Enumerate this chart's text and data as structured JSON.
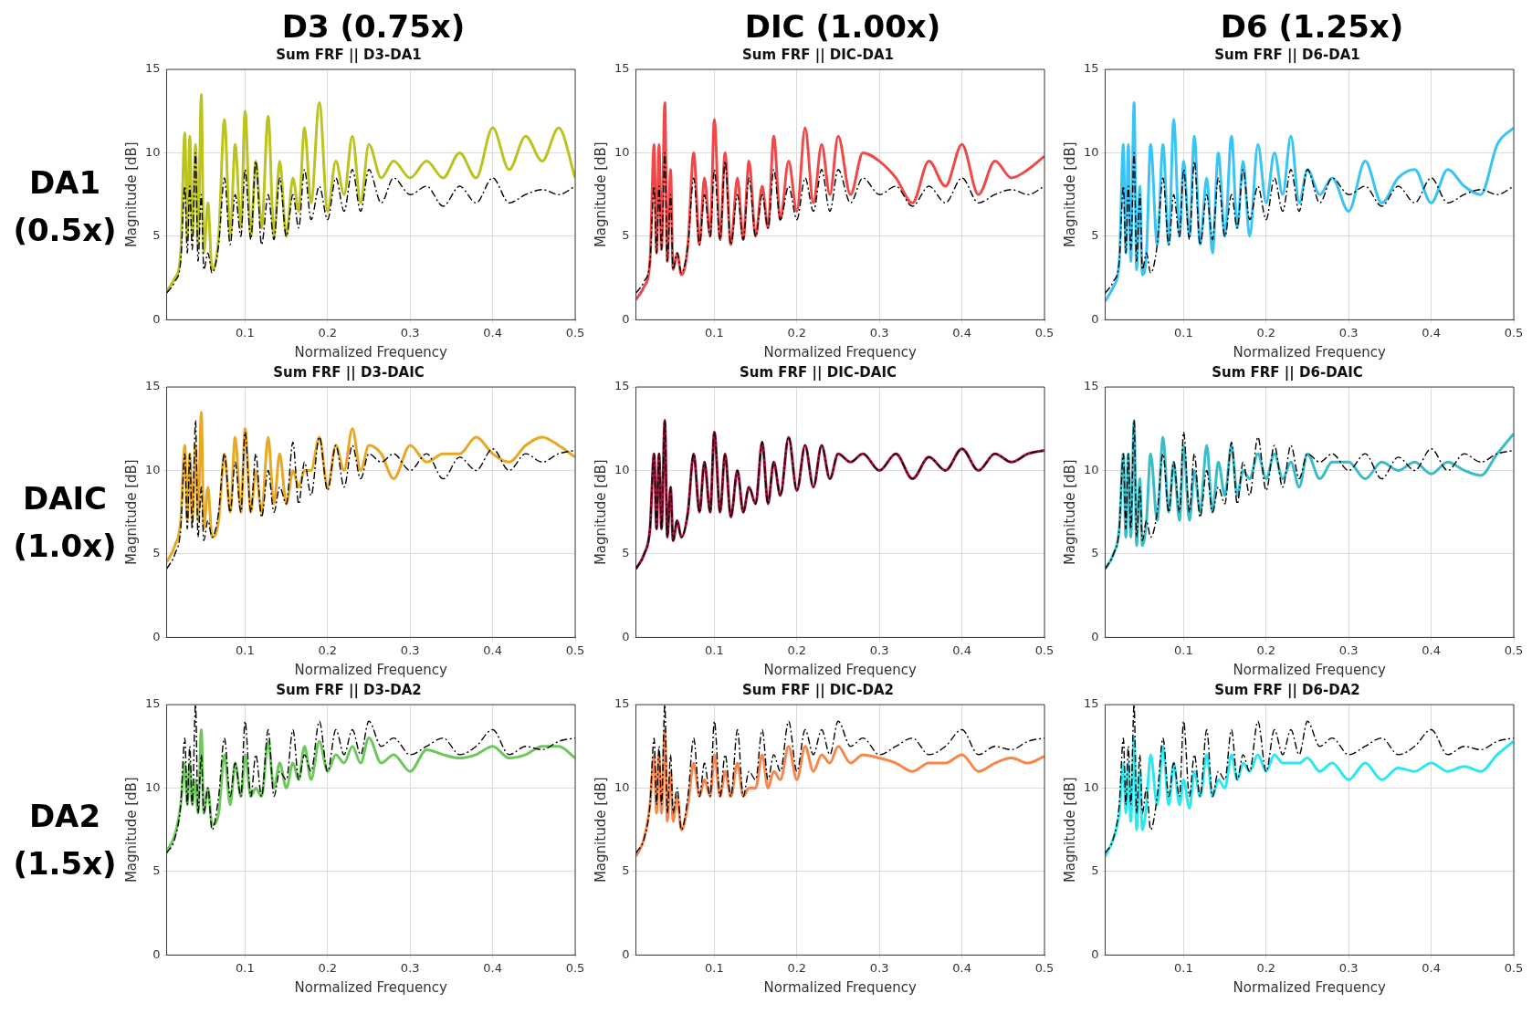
{
  "chart_data": [
    {
      "type": "line",
      "title": "Sum FRF || D3-DA1",
      "xlabel": "Normalized Frequency",
      "ylabel": "Magnitude [dB]",
      "annotations": [
        "D3 (0.75x)",
        "DA1 (0.5x)"
      ],
      "xlim": [
        0.005,
        0.5
      ],
      "xticks": [
        0.1,
        0.2,
        0.3,
        0.4,
        0.5
      ],
      "ylim": [
        0,
        15
      ],
      "yticks": [
        0,
        5,
        10,
        15
      ],
      "grid": true,
      "legend": false,
      "x": [
        0.005,
        0.015,
        0.022,
        0.027,
        0.03,
        0.033,
        0.036,
        0.04,
        0.043,
        0.047,
        0.05,
        0.055,
        0.06,
        0.068,
        0.075,
        0.082,
        0.088,
        0.095,
        0.1,
        0.107,
        0.113,
        0.12,
        0.128,
        0.135,
        0.142,
        0.15,
        0.158,
        0.165,
        0.172,
        0.18,
        0.19,
        0.2,
        0.21,
        0.22,
        0.23,
        0.24,
        0.25,
        0.265,
        0.28,
        0.3,
        0.32,
        0.34,
        0.36,
        0.38,
        0.4,
        0.42,
        0.44,
        0.46,
        0.48,
        0.5
      ],
      "series": [
        {
          "color": "#bcc21e",
          "line_style": "solid",
          "values": [
            1.7,
            2.5,
            4.0,
            11.2,
            5.0,
            11.0,
            5.0,
            10.5,
            4.5,
            13.5,
            4.0,
            7.0,
            3.0,
            5.0,
            12.0,
            5.0,
            10.5,
            5.5,
            12.5,
            5.0,
            9.5,
            5.5,
            12.2,
            5.0,
            9.5,
            5.0,
            8.5,
            6.5,
            11.5,
            7.0,
            13.0,
            6.5,
            9.5,
            7.5,
            11.0,
            7.0,
            10.5,
            8.5,
            9.5,
            8.5,
            9.5,
            8.5,
            10.0,
            8.5,
            11.5,
            9.0,
            11.0,
            9.5,
            11.5,
            8.5
          ]
        },
        {
          "color": "#000000",
          "line_style": "dashed",
          "values": [
            1.6,
            2.3,
            3.5,
            8.0,
            4.0,
            8.0,
            4.2,
            10.0,
            3.5,
            7.5,
            3.0,
            4.0,
            2.8,
            4.5,
            8.5,
            4.5,
            7.5,
            5.0,
            9.0,
            4.8,
            9.5,
            4.5,
            7.5,
            4.8,
            8.5,
            5.0,
            7.5,
            5.5,
            9.0,
            6.0,
            8.0,
            6.0,
            8.5,
            6.5,
            9.0,
            6.5,
            9.0,
            7.0,
            8.5,
            7.5,
            8.0,
            6.8,
            8.0,
            7.0,
            8.5,
            7.0,
            7.5,
            7.8,
            7.5,
            8.0
          ]
        }
      ]
    },
    {
      "type": "line",
      "title": "Sum FRF || DIC-DA1",
      "xlabel": "Normalized Frequency",
      "ylabel": "Magnitude [dB]",
      "annotations": [
        "DIC (1.00x)"
      ],
      "xlim": [
        0.005,
        0.5
      ],
      "xticks": [
        0.1,
        0.2,
        0.3,
        0.4,
        0.5
      ],
      "ylim": [
        0,
        15
      ],
      "yticks": [
        0,
        5,
        10,
        15
      ],
      "grid": true,
      "legend": false,
      "x": [
        0.005,
        0.015,
        0.022,
        0.027,
        0.03,
        0.033,
        0.036,
        0.04,
        0.043,
        0.047,
        0.05,
        0.055,
        0.06,
        0.068,
        0.075,
        0.082,
        0.088,
        0.095,
        0.1,
        0.107,
        0.113,
        0.12,
        0.128,
        0.135,
        0.142,
        0.15,
        0.158,
        0.165,
        0.172,
        0.18,
        0.19,
        0.2,
        0.21,
        0.22,
        0.23,
        0.24,
        0.25,
        0.265,
        0.28,
        0.3,
        0.32,
        0.34,
        0.36,
        0.38,
        0.4,
        0.42,
        0.44,
        0.46,
        0.48,
        0.5
      ],
      "series": [
        {
          "color": "#f04848",
          "line_style": "solid",
          "values": [
            1.2,
            2.0,
            3.5,
            10.5,
            4.0,
            10.5,
            4.2,
            13.0,
            3.5,
            9.0,
            3.0,
            4.0,
            2.7,
            4.5,
            10.0,
            4.5,
            8.5,
            5.0,
            12.0,
            4.8,
            10.0,
            4.5,
            8.5,
            4.8,
            9.5,
            5.0,
            8.0,
            5.5,
            11.0,
            6.0,
            9.5,
            6.5,
            11.5,
            7.0,
            10.5,
            7.5,
            11.0,
            7.5,
            10.0,
            9.5,
            8.5,
            7.0,
            9.5,
            8.0,
            10.5,
            7.5,
            9.5,
            8.5,
            9.0,
            9.8
          ]
        },
        {
          "color": "#000000",
          "line_style": "dashed",
          "values": [
            1.6,
            2.3,
            3.5,
            8.0,
            4.0,
            8.0,
            4.2,
            10.0,
            3.5,
            7.5,
            3.0,
            4.0,
            2.8,
            4.5,
            8.5,
            4.5,
            7.5,
            5.0,
            9.0,
            4.8,
            9.5,
            4.5,
            7.5,
            4.8,
            8.5,
            5.0,
            7.5,
            5.5,
            9.0,
            6.0,
            8.0,
            6.0,
            8.5,
            6.5,
            9.0,
            6.5,
            9.0,
            7.0,
            8.5,
            7.5,
            8.0,
            6.8,
            8.0,
            7.0,
            8.5,
            7.0,
            7.5,
            7.8,
            7.5,
            8.0
          ]
        }
      ]
    },
    {
      "type": "line",
      "title": "Sum FRF || D6-DA1",
      "xlabel": "Normalized Frequency",
      "ylabel": "Magnitude [dB]",
      "annotations": [
        "D6 (1.25x)"
      ],
      "xlim": [
        0.005,
        0.5
      ],
      "xticks": [
        0.1,
        0.2,
        0.3,
        0.4,
        0.5
      ],
      "ylim": [
        0,
        15
      ],
      "yticks": [
        0,
        5,
        10,
        15
      ],
      "grid": true,
      "legend": false,
      "x": [
        0.005,
        0.015,
        0.022,
        0.027,
        0.03,
        0.033,
        0.036,
        0.04,
        0.043,
        0.047,
        0.05,
        0.055,
        0.06,
        0.068,
        0.075,
        0.082,
        0.088,
        0.095,
        0.1,
        0.107,
        0.113,
        0.12,
        0.128,
        0.135,
        0.142,
        0.15,
        0.158,
        0.165,
        0.172,
        0.18,
        0.19,
        0.2,
        0.21,
        0.22,
        0.23,
        0.24,
        0.25,
        0.265,
        0.28,
        0.3,
        0.32,
        0.34,
        0.36,
        0.38,
        0.4,
        0.42,
        0.44,
        0.46,
        0.48,
        0.5
      ],
      "series": [
        {
          "color": "#38c4f5",
          "line_style": "solid",
          "values": [
            1.1,
            2.0,
            3.5,
            10.5,
            4.0,
            10.5,
            3.5,
            13.0,
            3.0,
            8.0,
            2.7,
            4.0,
            10.5,
            4.5,
            10.5,
            4.5,
            12.0,
            5.0,
            9.5,
            5.0,
            11.0,
            4.5,
            8.5,
            4.0,
            10.0,
            5.0,
            11.0,
            5.5,
            9.5,
            5.0,
            10.5,
            7.0,
            10.0,
            7.5,
            11.0,
            7.0,
            9.0,
            7.5,
            8.5,
            6.5,
            9.5,
            7.0,
            8.5,
            9.0,
            7.0,
            9.0,
            8.0,
            7.5,
            10.5,
            11.5
          ]
        },
        {
          "color": "#000000",
          "line_style": "dashed",
          "values": [
            1.6,
            2.3,
            3.5,
            8.0,
            4.0,
            8.0,
            4.2,
            10.0,
            3.5,
            7.5,
            3.0,
            4.0,
            2.8,
            4.5,
            8.5,
            4.5,
            7.5,
            5.0,
            9.0,
            4.8,
            9.5,
            4.5,
            7.5,
            4.8,
            8.5,
            5.0,
            7.5,
            5.5,
            9.0,
            6.0,
            8.0,
            6.0,
            8.5,
            6.5,
            9.0,
            6.5,
            9.0,
            7.0,
            8.5,
            7.5,
            8.0,
            6.8,
            8.0,
            7.0,
            8.5,
            7.0,
            7.5,
            7.8,
            7.5,
            8.0
          ]
        }
      ]
    },
    {
      "type": "line",
      "title": "Sum FRF || D3-DAIC",
      "xlabel": "Normalized Frequency",
      "ylabel": "Magnitude [dB]",
      "annotations": [
        "DAIC (1.0x)"
      ],
      "xlim": [
        0.005,
        0.5
      ],
      "xticks": [
        0.1,
        0.2,
        0.3,
        0.4,
        0.5
      ],
      "ylim": [
        0,
        15
      ],
      "yticks": [
        0,
        5,
        10,
        15
      ],
      "grid": true,
      "legend": false,
      "x": [
        0.005,
        0.015,
        0.022,
        0.027,
        0.03,
        0.033,
        0.036,
        0.04,
        0.043,
        0.047,
        0.05,
        0.055,
        0.06,
        0.068,
        0.075,
        0.082,
        0.088,
        0.095,
        0.1,
        0.107,
        0.113,
        0.12,
        0.128,
        0.135,
        0.142,
        0.15,
        0.158,
        0.165,
        0.172,
        0.18,
        0.19,
        0.2,
        0.21,
        0.22,
        0.23,
        0.24,
        0.25,
        0.265,
        0.28,
        0.3,
        0.32,
        0.34,
        0.36,
        0.38,
        0.4,
        0.42,
        0.44,
        0.46,
        0.48,
        0.5
      ],
      "series": [
        {
          "color": "#e8a825",
          "line_style": "solid",
          "values": [
            4.5,
            5.5,
            7.0,
            11.5,
            7.0,
            11.0,
            7.0,
            11.5,
            7.0,
            13.5,
            6.5,
            9.0,
            6.0,
            7.0,
            11.0,
            7.5,
            12.0,
            7.5,
            12.5,
            7.5,
            10.0,
            7.5,
            12.0,
            8.0,
            11.0,
            8.0,
            10.0,
            9.0,
            10.0,
            10.0,
            12.0,
            9.0,
            11.5,
            10.0,
            12.5,
            10.0,
            11.5,
            11.0,
            9.5,
            11.5,
            10.5,
            11.0,
            11.0,
            12.0,
            11.0,
            10.5,
            11.5,
            12.0,
            11.5,
            10.8
          ]
        },
        {
          "color": "#000000",
          "line_style": "dashed",
          "values": [
            4.1,
            5.0,
            6.5,
            11.0,
            6.5,
            11.0,
            6.5,
            13.0,
            6.0,
            9.0,
            5.8,
            7.0,
            6.0,
            7.5,
            11.0,
            7.5,
            10.5,
            7.5,
            12.3,
            7.5,
            11.0,
            7.2,
            10.0,
            7.5,
            9.0,
            8.0,
            11.7,
            8.0,
            10.5,
            8.5,
            12.0,
            8.8,
            11.5,
            9.0,
            11.5,
            9.5,
            11.0,
            10.5,
            11.0,
            10.0,
            11.0,
            9.5,
            10.8,
            10.0,
            11.3,
            10.0,
            11.0,
            10.5,
            11.0,
            11.2
          ]
        }
      ]
    },
    {
      "type": "line",
      "title": "Sum FRF || DIC-DAIC",
      "xlabel": "Normalized Frequency",
      "ylabel": "Magnitude [dB]",
      "xlim": [
        0.005,
        0.5
      ],
      "xticks": [
        0.1,
        0.2,
        0.3,
        0.4,
        0.5
      ],
      "ylim": [
        0,
        15
      ],
      "yticks": [
        0,
        5,
        10,
        15
      ],
      "grid": true,
      "legend": false,
      "x": [
        0.005,
        0.015,
        0.022,
        0.027,
        0.03,
        0.033,
        0.036,
        0.04,
        0.043,
        0.047,
        0.05,
        0.055,
        0.06,
        0.068,
        0.075,
        0.082,
        0.088,
        0.095,
        0.1,
        0.107,
        0.113,
        0.12,
        0.128,
        0.135,
        0.142,
        0.15,
        0.158,
        0.165,
        0.172,
        0.18,
        0.19,
        0.2,
        0.21,
        0.22,
        0.23,
        0.24,
        0.25,
        0.265,
        0.28,
        0.3,
        0.32,
        0.34,
        0.36,
        0.38,
        0.4,
        0.42,
        0.44,
        0.46,
        0.48,
        0.5
      ],
      "series": [
        {
          "color": "#a0143c",
          "line_style": "solid",
          "values": [
            4.1,
            5.0,
            6.5,
            11.0,
            6.5,
            11.0,
            6.5,
            13.0,
            6.0,
            9.0,
            5.8,
            7.0,
            6.0,
            7.5,
            11.0,
            7.5,
            10.5,
            7.5,
            12.3,
            7.5,
            11.0,
            7.2,
            10.0,
            7.5,
            9.0,
            8.0,
            11.7,
            8.0,
            10.5,
            8.5,
            12.0,
            8.8,
            11.5,
            9.0,
            11.5,
            9.5,
            11.0,
            10.5,
            11.0,
            10.0,
            11.0,
            9.5,
            10.8,
            10.0,
            11.3,
            10.0,
            11.0,
            10.5,
            11.0,
            11.2
          ]
        },
        {
          "color": "#000000",
          "line_style": "dashed",
          "values": [
            4.1,
            5.0,
            6.5,
            11.0,
            6.5,
            11.0,
            6.5,
            13.0,
            6.0,
            9.0,
            5.8,
            7.0,
            6.0,
            7.5,
            11.0,
            7.5,
            10.5,
            7.5,
            12.3,
            7.5,
            11.0,
            7.2,
            10.0,
            7.5,
            9.0,
            8.0,
            11.7,
            8.0,
            10.5,
            8.5,
            12.0,
            8.8,
            11.5,
            9.0,
            11.5,
            9.5,
            11.0,
            10.5,
            11.0,
            10.0,
            11.0,
            9.5,
            10.8,
            10.0,
            11.3,
            10.0,
            11.0,
            10.5,
            11.0,
            11.2
          ]
        }
      ]
    },
    {
      "type": "line",
      "title": "Sum FRF || D6-DAIC",
      "xlabel": "Normalized Frequency",
      "ylabel": "Magnitude [dB]",
      "xlim": [
        0.005,
        0.5
      ],
      "xticks": [
        0.1,
        0.2,
        0.3,
        0.4,
        0.5
      ],
      "ylim": [
        0,
        15
      ],
      "yticks": [
        0,
        5,
        10,
        15
      ],
      "grid": true,
      "legend": false,
      "x": [
        0.005,
        0.015,
        0.022,
        0.027,
        0.03,
        0.033,
        0.036,
        0.04,
        0.043,
        0.047,
        0.05,
        0.055,
        0.06,
        0.068,
        0.075,
        0.082,
        0.088,
        0.095,
        0.1,
        0.107,
        0.113,
        0.12,
        0.128,
        0.135,
        0.142,
        0.15,
        0.158,
        0.165,
        0.172,
        0.18,
        0.19,
        0.2,
        0.21,
        0.22,
        0.23,
        0.24,
        0.25,
        0.265,
        0.28,
        0.3,
        0.32,
        0.34,
        0.36,
        0.38,
        0.4,
        0.42,
        0.44,
        0.46,
        0.48,
        0.5
      ],
      "series": [
        {
          "color": "#38bcc8",
          "line_style": "solid",
          "values": [
            4.1,
            5.0,
            6.5,
            11.0,
            6.0,
            11.0,
            6.0,
            13.0,
            5.5,
            9.5,
            5.5,
            7.0,
            11.0,
            7.0,
            12.0,
            7.5,
            10.5,
            7.0,
            11.5,
            7.0,
            10.0,
            7.5,
            11.5,
            7.5,
            10.5,
            8.5,
            11.5,
            8.5,
            10.0,
            9.5,
            11.0,
            9.5,
            11.0,
            9.5,
            10.5,
            9.0,
            11.0,
            9.5,
            10.5,
            10.5,
            9.5,
            10.5,
            10.0,
            10.5,
            9.8,
            10.5,
            10.0,
            9.7,
            11.0,
            12.2
          ]
        },
        {
          "color": "#000000",
          "line_style": "dashed",
          "values": [
            4.1,
            5.0,
            6.5,
            11.0,
            6.5,
            11.0,
            6.5,
            13.0,
            6.0,
            9.0,
            5.8,
            7.0,
            6.0,
            7.5,
            11.0,
            7.5,
            10.5,
            7.5,
            12.3,
            7.5,
            11.0,
            7.2,
            10.0,
            7.5,
            9.0,
            8.0,
            11.7,
            8.0,
            10.5,
            8.5,
            12.0,
            8.8,
            11.5,
            9.0,
            11.5,
            9.5,
            11.0,
            10.5,
            11.0,
            10.0,
            11.0,
            9.5,
            10.8,
            10.0,
            11.3,
            10.0,
            11.0,
            10.5,
            11.0,
            11.2
          ]
        }
      ]
    },
    {
      "type": "line",
      "title": "Sum FRF || D3-DA2",
      "xlabel": "Normalized Frequency",
      "ylabel": "Magnitude [dB]",
      "annotations": [
        "DA2 (1.5x)"
      ],
      "xlim": [
        0.005,
        0.5
      ],
      "xticks": [
        0.1,
        0.2,
        0.3,
        0.4,
        0.5
      ],
      "ylim": [
        0,
        15
      ],
      "yticks": [
        0,
        5,
        10,
        15
      ],
      "grid": true,
      "legend": false,
      "x": [
        0.005,
        0.015,
        0.022,
        0.027,
        0.03,
        0.033,
        0.036,
        0.04,
        0.043,
        0.047,
        0.05,
        0.055,
        0.06,
        0.068,
        0.075,
        0.082,
        0.088,
        0.095,
        0.1,
        0.107,
        0.113,
        0.12,
        0.128,
        0.135,
        0.142,
        0.15,
        0.158,
        0.165,
        0.172,
        0.18,
        0.19,
        0.2,
        0.21,
        0.22,
        0.23,
        0.24,
        0.25,
        0.265,
        0.28,
        0.3,
        0.32,
        0.34,
        0.36,
        0.38,
        0.4,
        0.42,
        0.44,
        0.46,
        0.48,
        0.5
      ],
      "series": [
        {
          "color": "#6cc85a",
          "line_style": "solid",
          "values": [
            6.2,
            7.2,
            9.0,
            11.5,
            9.0,
            11.5,
            9.0,
            10.5,
            8.5,
            13.5,
            8.5,
            10.0,
            7.8,
            8.5,
            12.0,
            9.0,
            11.5,
            9.5,
            12.0,
            9.5,
            10.0,
            9.5,
            12.8,
            10.0,
            11.5,
            10.0,
            11.5,
            10.5,
            12.5,
            10.5,
            12.8,
            11.0,
            12.0,
            11.5,
            12.5,
            11.5,
            13.0,
            11.5,
            12.0,
            11.0,
            12.3,
            12.0,
            11.8,
            12.0,
            12.5,
            11.8,
            12.0,
            12.5,
            12.5,
            11.8
          ]
        },
        {
          "color": "#000000",
          "line_style": "dashed",
          "values": [
            6.1,
            7.0,
            9.0,
            13.0,
            9.0,
            12.5,
            9.0,
            15.0,
            8.5,
            12.0,
            8.5,
            10.0,
            7.5,
            9.5,
            13.0,
            9.5,
            11.5,
            9.5,
            14.0,
            9.5,
            12.0,
            9.5,
            13.5,
            9.5,
            11.0,
            10.5,
            13.5,
            10.5,
            12.0,
            11.0,
            14.0,
            11.0,
            13.5,
            12.0,
            13.5,
            12.0,
            14.0,
            12.5,
            13.0,
            12.0,
            12.5,
            13.0,
            12.0,
            12.5,
            13.5,
            12.0,
            12.5,
            12.3,
            12.8,
            13.0
          ]
        }
      ]
    },
    {
      "type": "line",
      "title": "Sum FRF || DIC-DA2",
      "xlabel": "Normalized Frequency",
      "ylabel": "Magnitude [dB]",
      "xlim": [
        0.005,
        0.5
      ],
      "xticks": [
        0.1,
        0.2,
        0.3,
        0.4,
        0.5
      ],
      "ylim": [
        0,
        15
      ],
      "yticks": [
        0,
        5,
        10,
        15
      ],
      "grid": true,
      "legend": false,
      "x": [
        0.005,
        0.015,
        0.022,
        0.027,
        0.03,
        0.033,
        0.036,
        0.04,
        0.043,
        0.047,
        0.05,
        0.055,
        0.06,
        0.068,
        0.075,
        0.082,
        0.088,
        0.095,
        0.1,
        0.107,
        0.113,
        0.12,
        0.128,
        0.135,
        0.142,
        0.15,
        0.158,
        0.165,
        0.172,
        0.18,
        0.19,
        0.2,
        0.21,
        0.22,
        0.23,
        0.24,
        0.25,
        0.265,
        0.28,
        0.3,
        0.32,
        0.34,
        0.36,
        0.38,
        0.4,
        0.42,
        0.44,
        0.46,
        0.48,
        0.5
      ],
      "series": [
        {
          "color": "#f7864a",
          "line_style": "solid",
          "values": [
            5.9,
            7.0,
            9.0,
            12.0,
            8.5,
            12.0,
            8.5,
            13.5,
            8.0,
            11.0,
            8.0,
            9.5,
            7.5,
            9.0,
            11.5,
            9.5,
            10.5,
            9.5,
            12.0,
            9.5,
            11.0,
            9.5,
            11.5,
            9.5,
            10.0,
            10.0,
            12.0,
            10.0,
            11.0,
            10.5,
            12.5,
            10.5,
            12.5,
            11.0,
            12.0,
            11.5,
            12.5,
            11.5,
            12.0,
            11.8,
            11.5,
            11.0,
            11.5,
            11.5,
            12.0,
            11.0,
            11.5,
            11.8,
            11.5,
            11.9
          ]
        },
        {
          "color": "#000000",
          "line_style": "dashed",
          "values": [
            6.1,
            7.0,
            9.0,
            13.0,
            9.0,
            12.5,
            9.0,
            15.0,
            8.5,
            12.0,
            8.5,
            10.0,
            7.5,
            9.5,
            13.0,
            9.5,
            11.5,
            9.5,
            14.0,
            9.5,
            12.0,
            9.5,
            13.5,
            9.5,
            11.0,
            10.5,
            13.5,
            10.5,
            12.0,
            11.0,
            14.0,
            11.0,
            13.5,
            12.0,
            13.5,
            12.0,
            14.0,
            12.5,
            13.0,
            12.0,
            12.5,
            13.0,
            12.0,
            12.5,
            13.5,
            12.0,
            12.5,
            12.3,
            12.8,
            13.0
          ]
        }
      ]
    },
    {
      "type": "line",
      "title": "Sum FRF || D6-DA2",
      "xlabel": "Normalized Frequency",
      "ylabel": "Magnitude [dB]",
      "xlim": [
        0.005,
        0.5
      ],
      "xticks": [
        0.1,
        0.2,
        0.3,
        0.4,
        0.5
      ],
      "ylim": [
        0,
        15
      ],
      "yticks": [
        0,
        5,
        10,
        15
      ],
      "grid": true,
      "legend": false,
      "x": [
        0.005,
        0.015,
        0.022,
        0.027,
        0.03,
        0.033,
        0.036,
        0.04,
        0.043,
        0.047,
        0.05,
        0.055,
        0.06,
        0.068,
        0.075,
        0.082,
        0.088,
        0.095,
        0.1,
        0.107,
        0.113,
        0.12,
        0.128,
        0.135,
        0.142,
        0.15,
        0.158,
        0.165,
        0.172,
        0.18,
        0.19,
        0.2,
        0.21,
        0.22,
        0.23,
        0.24,
        0.25,
        0.265,
        0.28,
        0.3,
        0.32,
        0.34,
        0.36,
        0.38,
        0.4,
        0.42,
        0.44,
        0.46,
        0.48,
        0.5
      ],
      "series": [
        {
          "color": "#28e8f0",
          "line_style": "solid",
          "values": [
            5.9,
            7.0,
            8.5,
            11.5,
            8.5,
            11.5,
            8.0,
            13.0,
            7.5,
            11.0,
            7.5,
            9.0,
            12.0,
            9.0,
            12.5,
            9.0,
            11.5,
            9.0,
            10.5,
            8.8,
            11.0,
            9.5,
            12.0,
            9.5,
            10.5,
            10.0,
            12.0,
            10.5,
            11.5,
            11.0,
            12.0,
            11.0,
            12.0,
            11.5,
            11.5,
            11.5,
            11.8,
            11.0,
            11.5,
            10.5,
            11.5,
            10.5,
            11.2,
            11.0,
            11.5,
            11.0,
            11.3,
            11.0,
            12.0,
            12.8
          ]
        },
        {
          "color": "#000000",
          "line_style": "dashed",
          "values": [
            6.1,
            7.0,
            9.0,
            13.0,
            9.0,
            12.5,
            9.0,
            15.0,
            8.5,
            12.0,
            8.5,
            10.0,
            7.5,
            9.5,
            13.0,
            9.5,
            11.5,
            9.5,
            14.0,
            9.5,
            12.0,
            9.5,
            13.5,
            9.5,
            11.0,
            10.5,
            13.5,
            10.5,
            12.0,
            11.0,
            14.0,
            11.0,
            13.5,
            12.0,
            13.5,
            12.0,
            14.0,
            12.5,
            13.0,
            12.0,
            12.5,
            13.0,
            12.0,
            12.5,
            13.5,
            12.0,
            12.5,
            12.3,
            12.8,
            13.0
          ]
        }
      ]
    }
  ]
}
